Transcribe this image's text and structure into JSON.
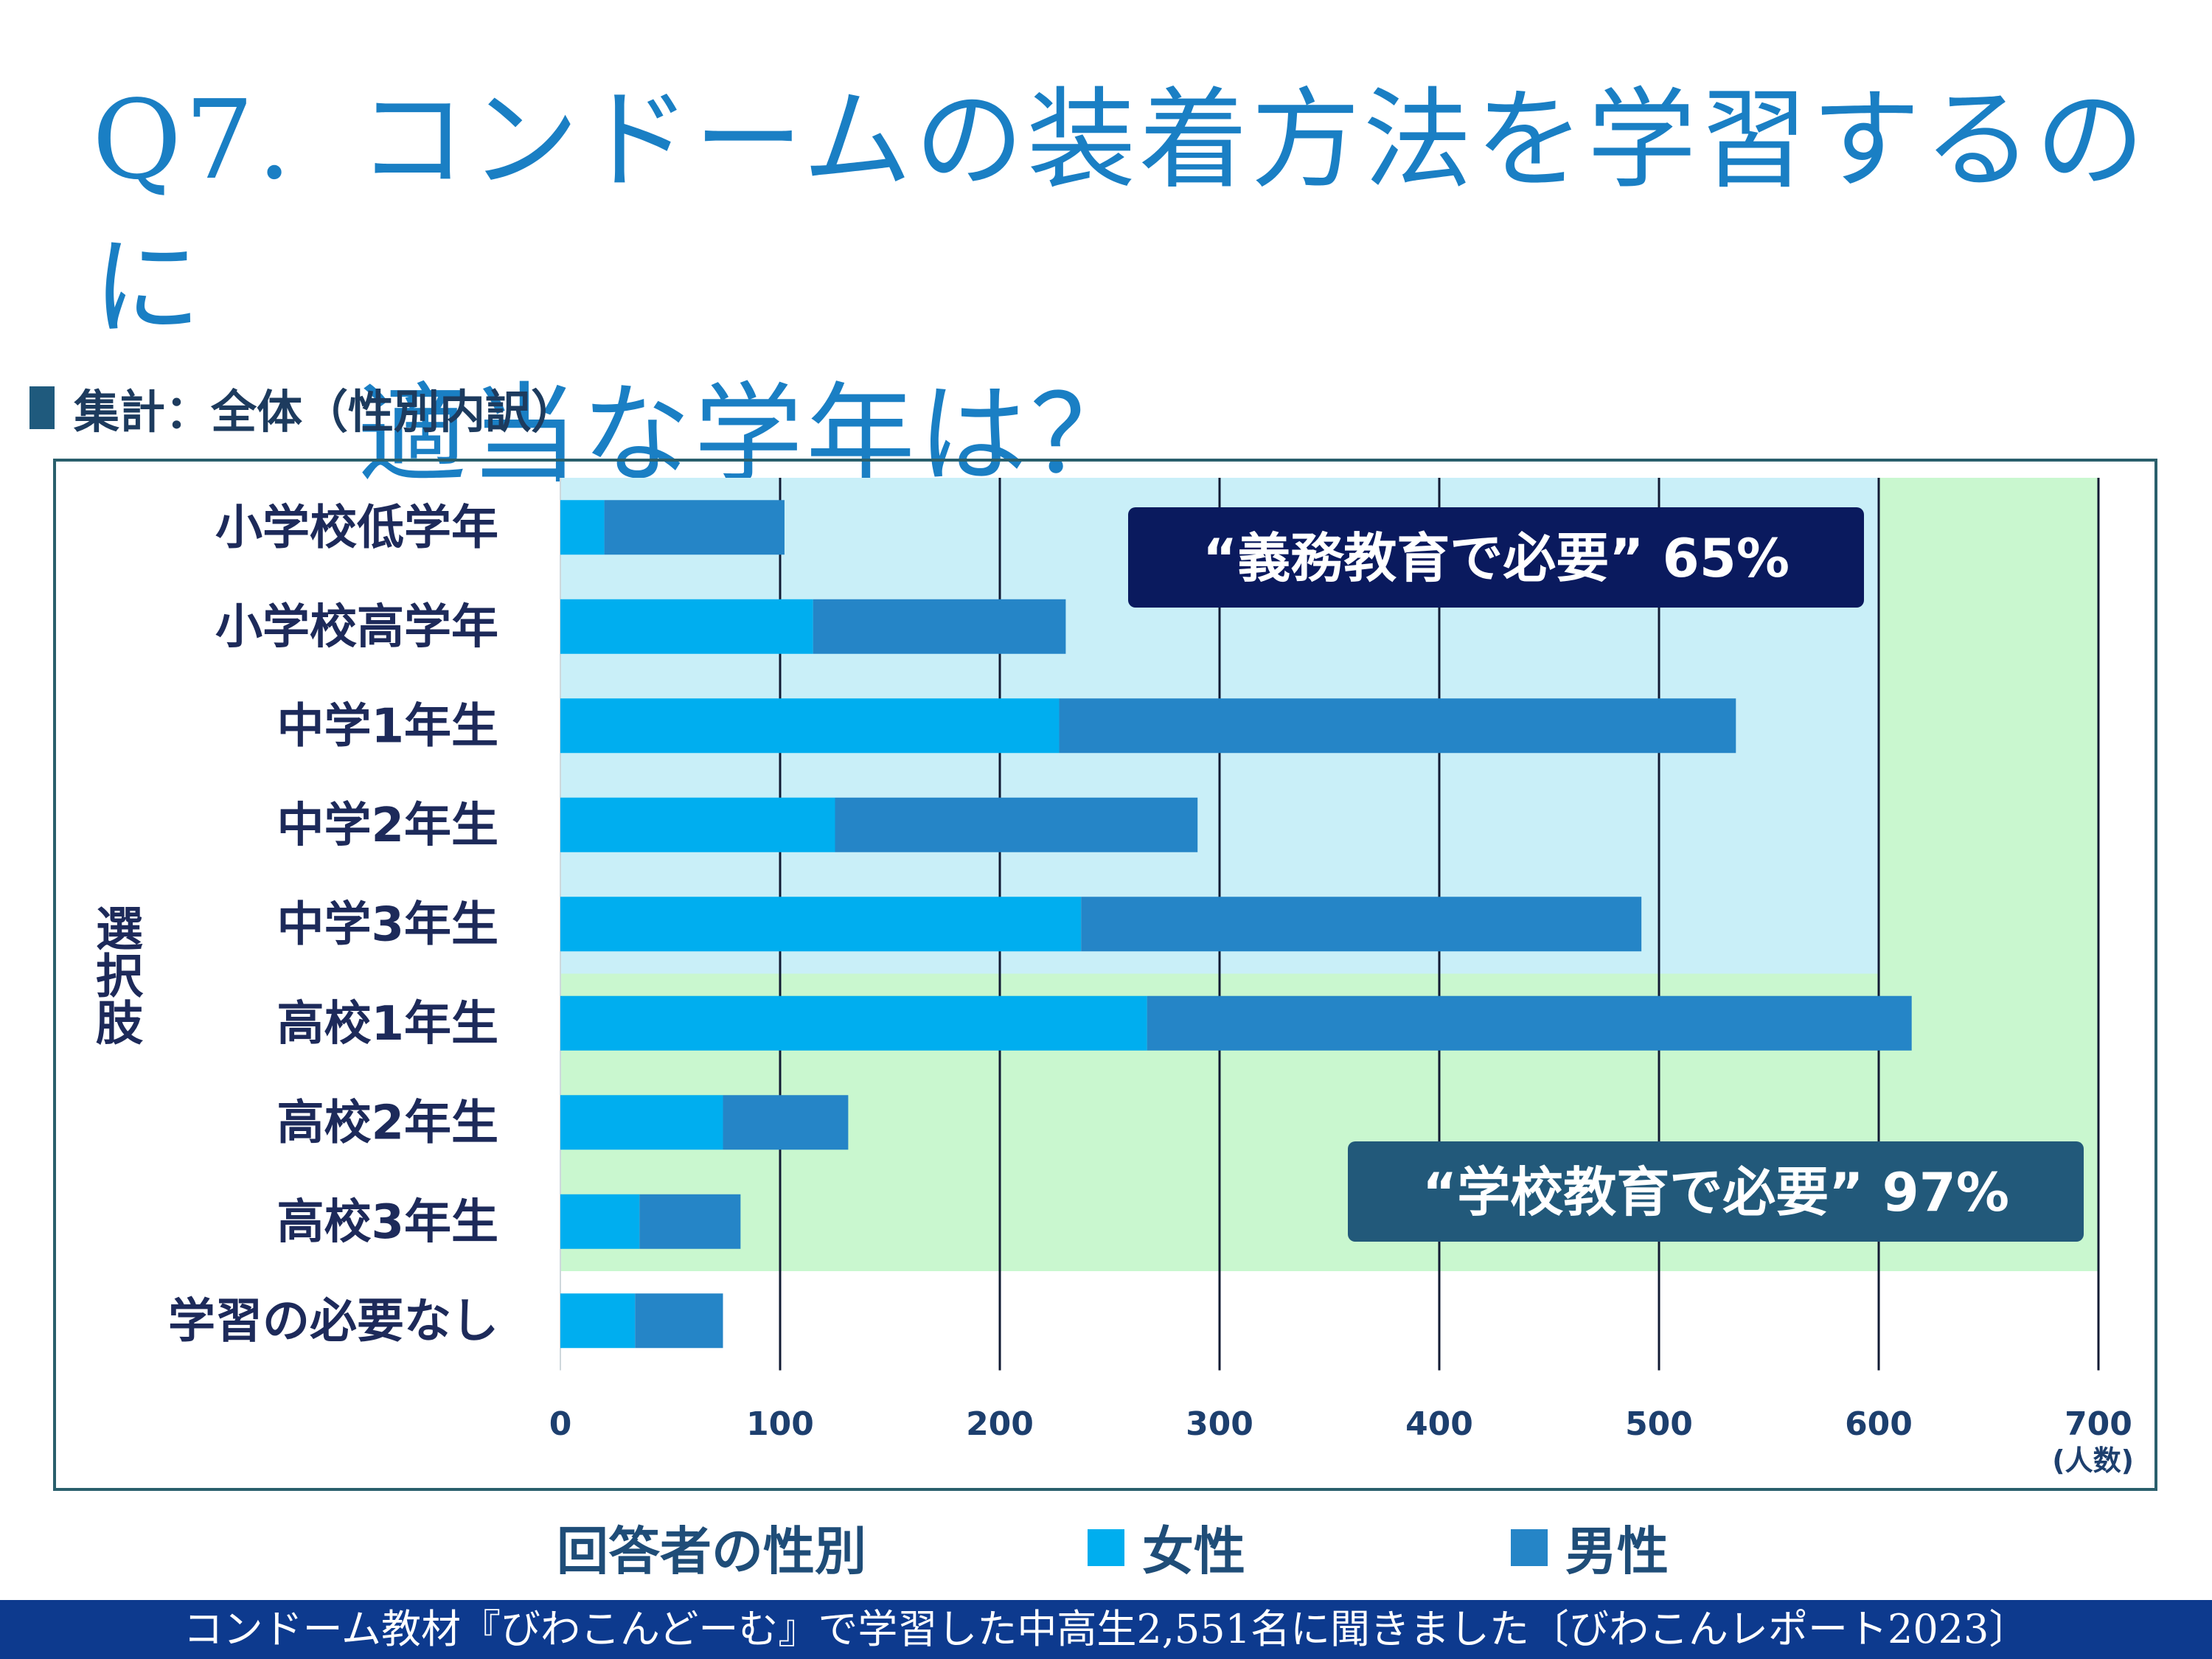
{
  "title": {
    "q": "Q7.",
    "line1": "コンドームの装着方法を学習するのに",
    "line2": "適当な学年は？"
  },
  "subhead": "集計：全体（性別内訳）",
  "footer": "コンドーム教材『びわこんどーむ』で学習した中高生2,551名に聞きました〔びわこんレポート2023〕",
  "legend": {
    "title": "回答者の性別",
    "items": [
      {
        "label": "女性",
        "color": "#00aeef"
      },
      {
        "label": "男性",
        "color": "#2585c7"
      }
    ]
  },
  "chart_data": {
    "type": "bar",
    "orientation": "horizontal",
    "stacked": true,
    "categories": [
      "小学校低学年",
      "小学校高学年",
      "中学1年生",
      "中学2年生",
      "中学3年生",
      "高校1年生",
      "高校2年生",
      "高校3年生",
      "学習の必要なし"
    ],
    "series": [
      {
        "name": "女性",
        "color": "#00aeef",
        "values": [
          20,
          115,
          227,
          125,
          237,
          267,
          74,
          36,
          34
        ]
      },
      {
        "name": "男性",
        "color": "#2585c7",
        "values": [
          82,
          115,
          308,
          165,
          255,
          348,
          57,
          46,
          40
        ]
      }
    ],
    "xlim": [
      0,
      700
    ],
    "xticks": [
      0,
      100,
      200,
      300,
      400,
      500,
      600,
      700
    ],
    "xunit": "(人数)",
    "ylabel": "選択肢",
    "grid": true,
    "shaded_regions": [
      {
        "categories_from": 0,
        "categories_to": 4,
        "xmax": 600,
        "color": "#c9eff8"
      },
      {
        "categories_from": 0,
        "categories_to": 7,
        "xmax": 700,
        "color": "#c9f7cf"
      }
    ],
    "annotations": [
      {
        "text": "“義務教育で必要”  65%",
        "bg": "#0a1a5e",
        "fg": "#ffffff",
        "anchor": "top-right"
      },
      {
        "text": "“学校教育で必要”  97%",
        "bg": "#22597a",
        "fg": "#ffffff",
        "anchor": "bottom-right"
      }
    ]
  }
}
